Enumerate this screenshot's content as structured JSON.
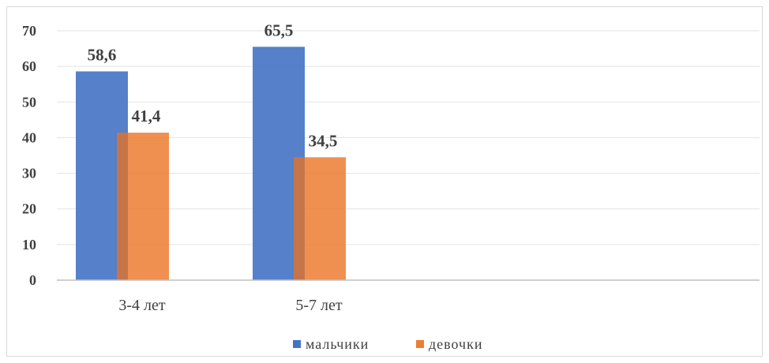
{
  "chart_data": {
    "type": "bar",
    "title": "",
    "xlabel": "",
    "ylabel": "",
    "categories": [
      "3-4 лет",
      "5-7 лет"
    ],
    "series": [
      {
        "name": "мальчики",
        "values": [
          58.6,
          65.5
        ],
        "labels": [
          "58,6",
          "65,5"
        ],
        "color": "#4472C4"
      },
      {
        "name": "девочки",
        "values": [
          41.4,
          34.5
        ],
        "labels": [
          "41,4",
          "34,5"
        ],
        "color": "#ED7D31"
      }
    ],
    "ylim": [
      0,
      70
    ],
    "yticks": [
      0,
      10,
      20,
      30,
      40,
      50,
      60,
      70
    ],
    "grid": true,
    "legend_position": "bottom"
  }
}
